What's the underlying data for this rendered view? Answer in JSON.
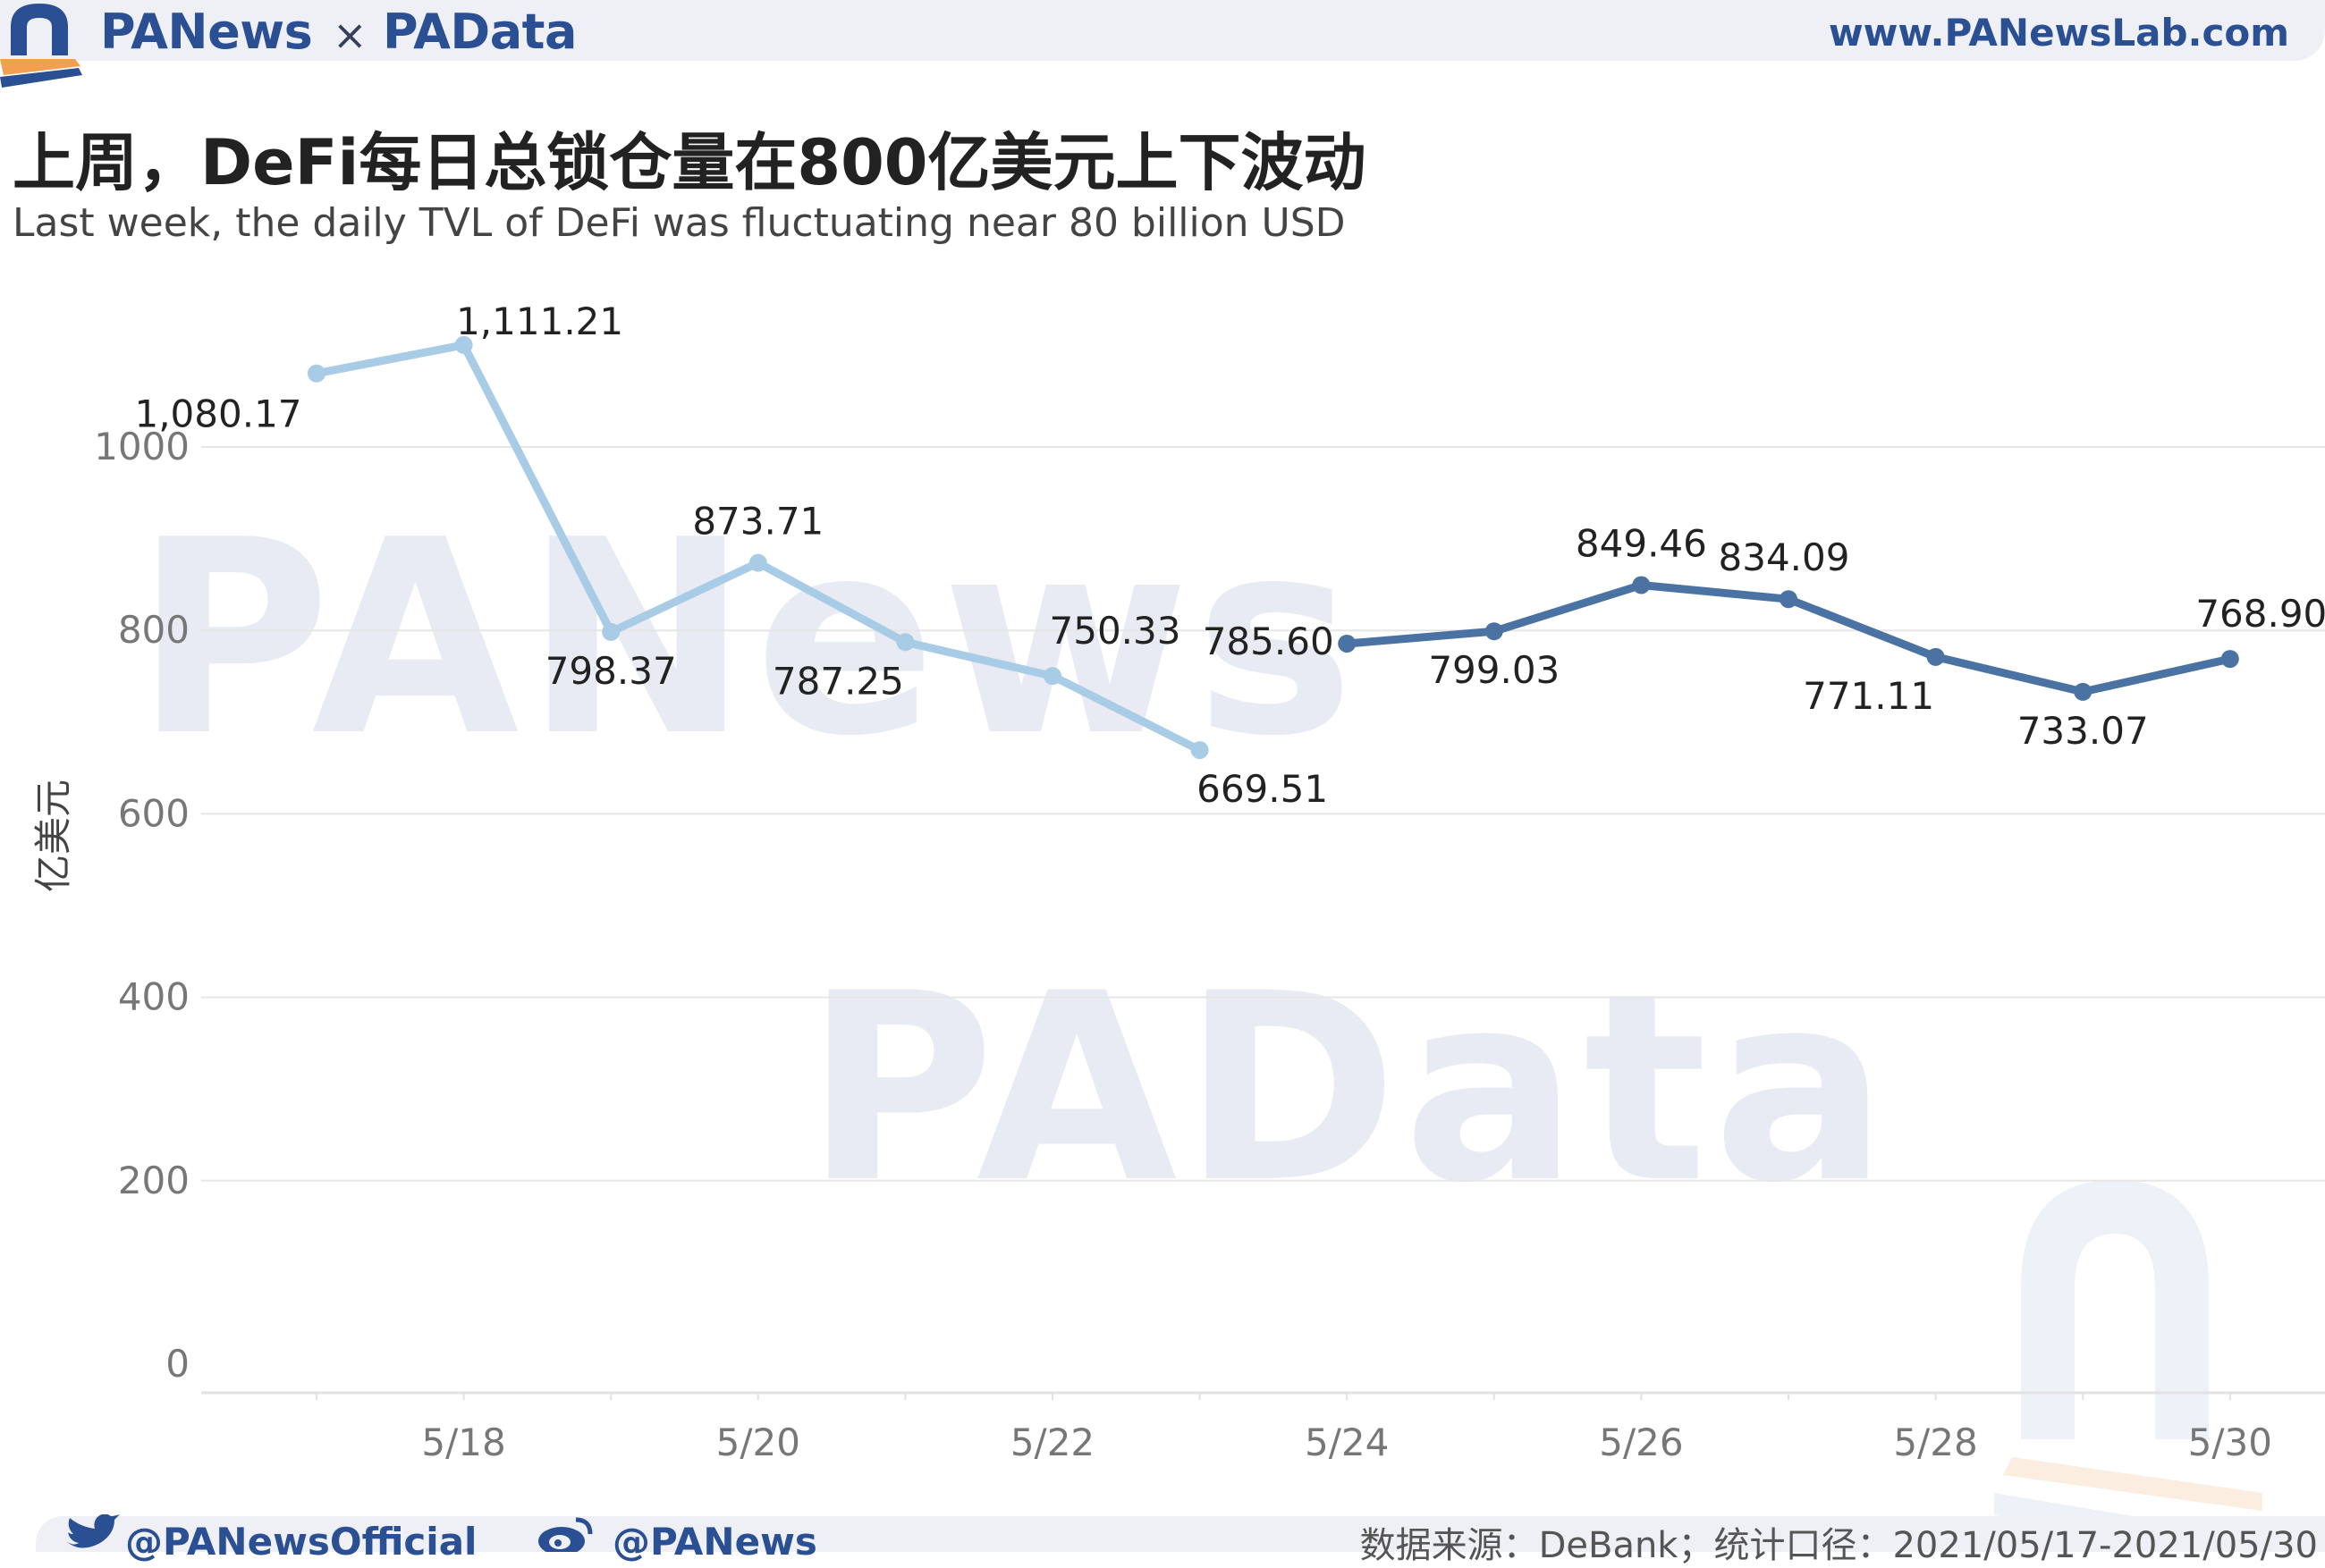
{
  "header": {
    "brand_left": "PANews",
    "brand_separator": "×",
    "brand_right": "PAData",
    "url": "www.PANewsLab.com"
  },
  "colors": {
    "brand_blue": "#2b4f93",
    "accent_orange": "#f0a050",
    "series_before": "#a9cce6",
    "series_after": "#4a73a3"
  },
  "chart_data": {
    "type": "line",
    "title": "上周，DeFi每日总锁仓量在800亿美元上下波动",
    "subtitle": "Last week, the daily TVL of DeFi was fluctuating near 80 billion USD",
    "ylabel": "亿美元",
    "xlabel": "",
    "ylim": [
      0,
      1111.21
    ],
    "yticks": [
      0,
      200,
      400,
      600,
      800,
      1000
    ],
    "xtick_labels": [
      "5/18",
      "5/20",
      "5/22",
      "5/24",
      "5/26",
      "5/28",
      "5/30"
    ],
    "grid": true,
    "series": [
      {
        "x": [
          "5/17",
          "5/18",
          "5/19",
          "5/20",
          "5/21",
          "5/22",
          "5/23"
        ],
        "values": [
          1080.17,
          1111.21,
          798.37,
          873.71,
          787.25,
          750.33,
          669.51
        ],
        "labels": [
          "1,080.17",
          "1,111.21",
          "798.37",
          "873.71",
          "787.25",
          "750.33",
          "669.51"
        ],
        "color": "#a9cce6"
      },
      {
        "x": [
          "5/24",
          "5/25",
          "5/26",
          "5/27",
          "5/28",
          "5/29",
          "5/30"
        ],
        "values": [
          785.6,
          799.03,
          849.46,
          834.09,
          771.11,
          733.07,
          768.9
        ],
        "labels": [
          "785.60",
          "799.03",
          "849.46",
          "834.09",
          "771.11",
          "733.07",
          "768.90"
        ],
        "color": "#4a73a3"
      }
    ]
  },
  "watermarks": {
    "top": "PANews",
    "bottom": "PAData"
  },
  "footer": {
    "twitter": "@PANewsOfficial",
    "weibo": "@PANews",
    "source": "数据来源：DeBank；统计口径：2021/05/17-2021/05/30"
  }
}
